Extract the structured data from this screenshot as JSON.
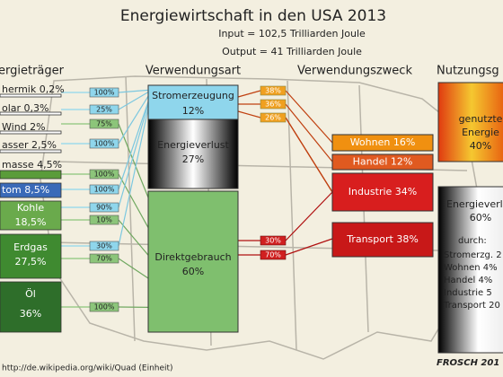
{
  "header": {
    "title": "Energiewirtschaft in den USA 2013",
    "input": "Input = 102,5 Trilliarden Joule",
    "output": "Output = 41 Trilliarden Joule"
  },
  "columns": [
    "ergieträger",
    "Verwendungsart",
    "Verwendungszweck",
    "Nutzungsg"
  ],
  "sources": [
    {
      "label": [
        "hermik 0,2%"
      ],
      "splits": [
        "100%"
      ]
    },
    {
      "label": [
        "olar 0,3%"
      ],
      "splits": [
        "25%",
        "75%"
      ]
    },
    {
      "label": [
        "Wind 2%"
      ],
      "splits": [
        "100%"
      ]
    },
    {
      "label": [
        "asser 2,5%"
      ],
      "splits": []
    },
    {
      "label": [
        "masse 4,5%"
      ],
      "splits": [
        "100%"
      ]
    },
    {
      "label": [
        "tom 8,5%"
      ],
      "splits": [
        "100%"
      ]
    },
    {
      "label": [
        "Kohle",
        "18,5%"
      ],
      "splits": [
        "90%",
        "10%"
      ]
    },
    {
      "label": [
        "Erdgas",
        "27,5%"
      ],
      "splits": [
        "30%",
        "70%"
      ]
    },
    {
      "label": [
        "Öl",
        "36%"
      ],
      "splits": [
        "100%"
      ]
    }
  ],
  "usage": [
    {
      "label": [
        "Stromerzeugung",
        "12%"
      ]
    },
    {
      "label": [
        "Energieverlust",
        "27%"
      ]
    },
    {
      "label": [
        "Direktgebrauch",
        "60%"
      ]
    }
  ],
  "electricity_splits": [
    "38%",
    "36%",
    "26%"
  ],
  "direct_splits": [
    "30%",
    "70%"
  ],
  "purposes": [
    "Wohnen 16%",
    "Handel 12%",
    "Industrie 34%",
    "Transport 38%"
  ],
  "result": {
    "used": [
      "genutzte",
      "Energie",
      "40%"
    ],
    "loss": [
      "Energieverl",
      "60%"
    ],
    "loss_by": [
      "durch:",
      "Stromerzg. 2",
      "Wohnen 4%",
      "Handel 4%",
      "Industrie 5",
      "Transport 20"
    ]
  },
  "footer": {
    "source": "http://de.wikipedia.org/wiki/Quad (Einheit)",
    "signature": "FROSCH 201"
  }
}
